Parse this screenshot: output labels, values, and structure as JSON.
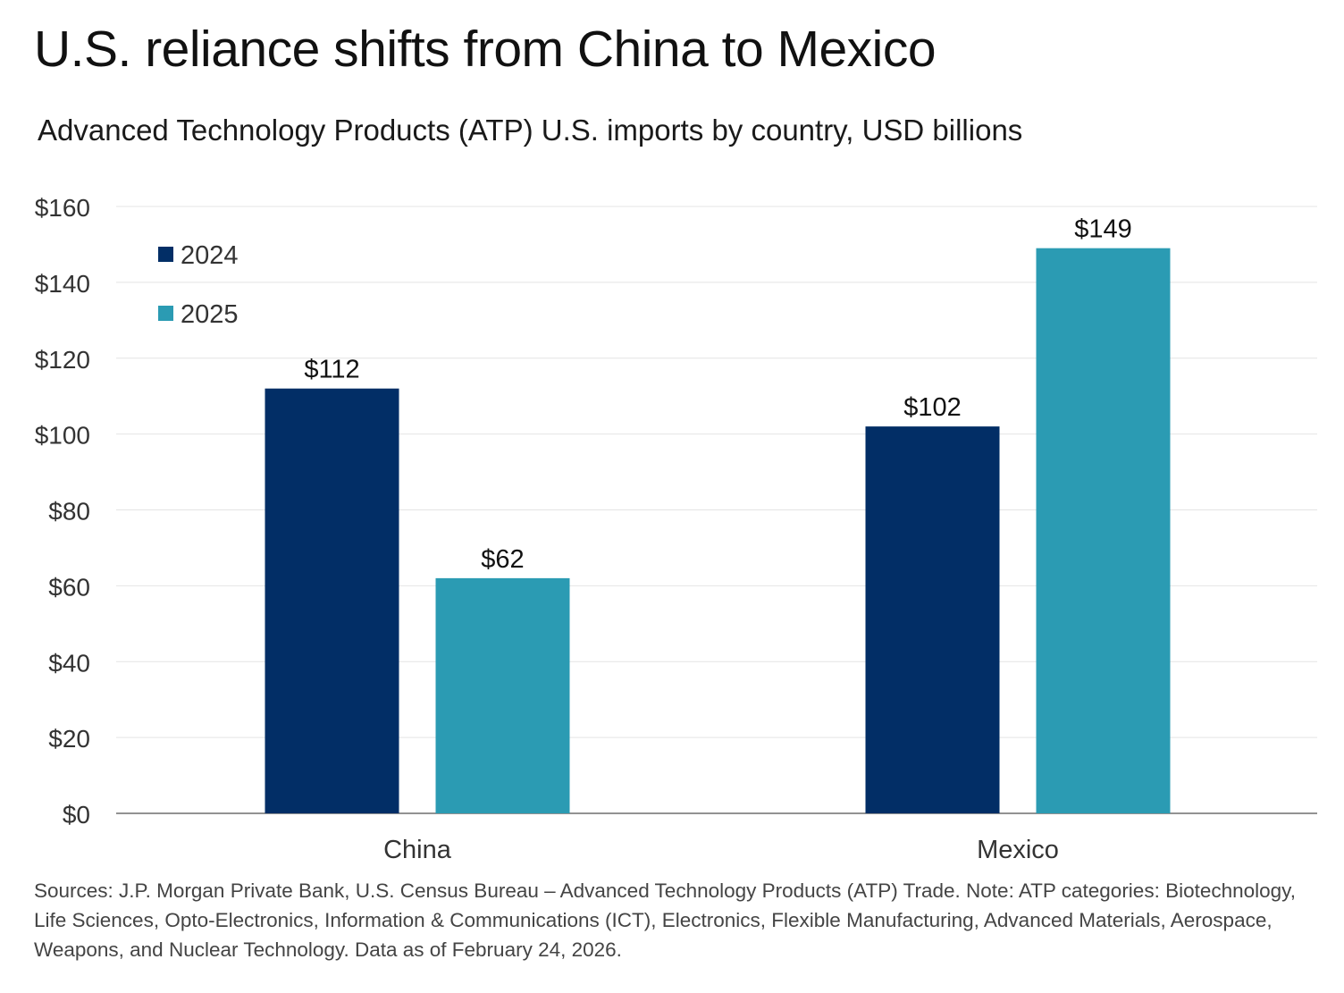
{
  "title": "U.S. reliance shifts from China to Mexico",
  "subtitle": "Advanced Technology Products (ATP) U.S. imports by country, USD billions",
  "footnote": "Sources: J.P. Morgan Private Bank, U.S. Census Bureau – Advanced Technology Products (ATP) Trade. Note: ATP categories: Biotechnology, Life Sciences, Opto-Electronics, Information & Communications (ICT), Electronics, Flexible Manufacturing, Advanced Materials, Aerospace, Weapons, and Nuclear Technology. Data as of February 24, 2026.",
  "chart_data": {
    "type": "bar",
    "title": "U.S. reliance shifts from China to Mexico",
    "subtitle": "Advanced Technology Products (ATP) U.S. imports by country, USD billions",
    "categories": [
      "China",
      "Mexico"
    ],
    "series": [
      {
        "name": "2024",
        "values": [
          112,
          102
        ],
        "labels": [
          "$112",
          "$102"
        ],
        "color": "#022e66"
      },
      {
        "name": "2025",
        "values": [
          62,
          149
        ],
        "labels": [
          "$62",
          "$149"
        ],
        "color": "#2b9bb3"
      }
    ],
    "ylim": [
      0,
      160
    ],
    "yticks": [
      0,
      20,
      40,
      60,
      80,
      100,
      120,
      140,
      160
    ],
    "ytick_labels": [
      "$0",
      "$20",
      "$40",
      "$60",
      "$80",
      "$100",
      "$120",
      "$140",
      "$160"
    ],
    "xlabel": "",
    "ylabel": "",
    "grid": true,
    "legend_position": "top-left"
  }
}
